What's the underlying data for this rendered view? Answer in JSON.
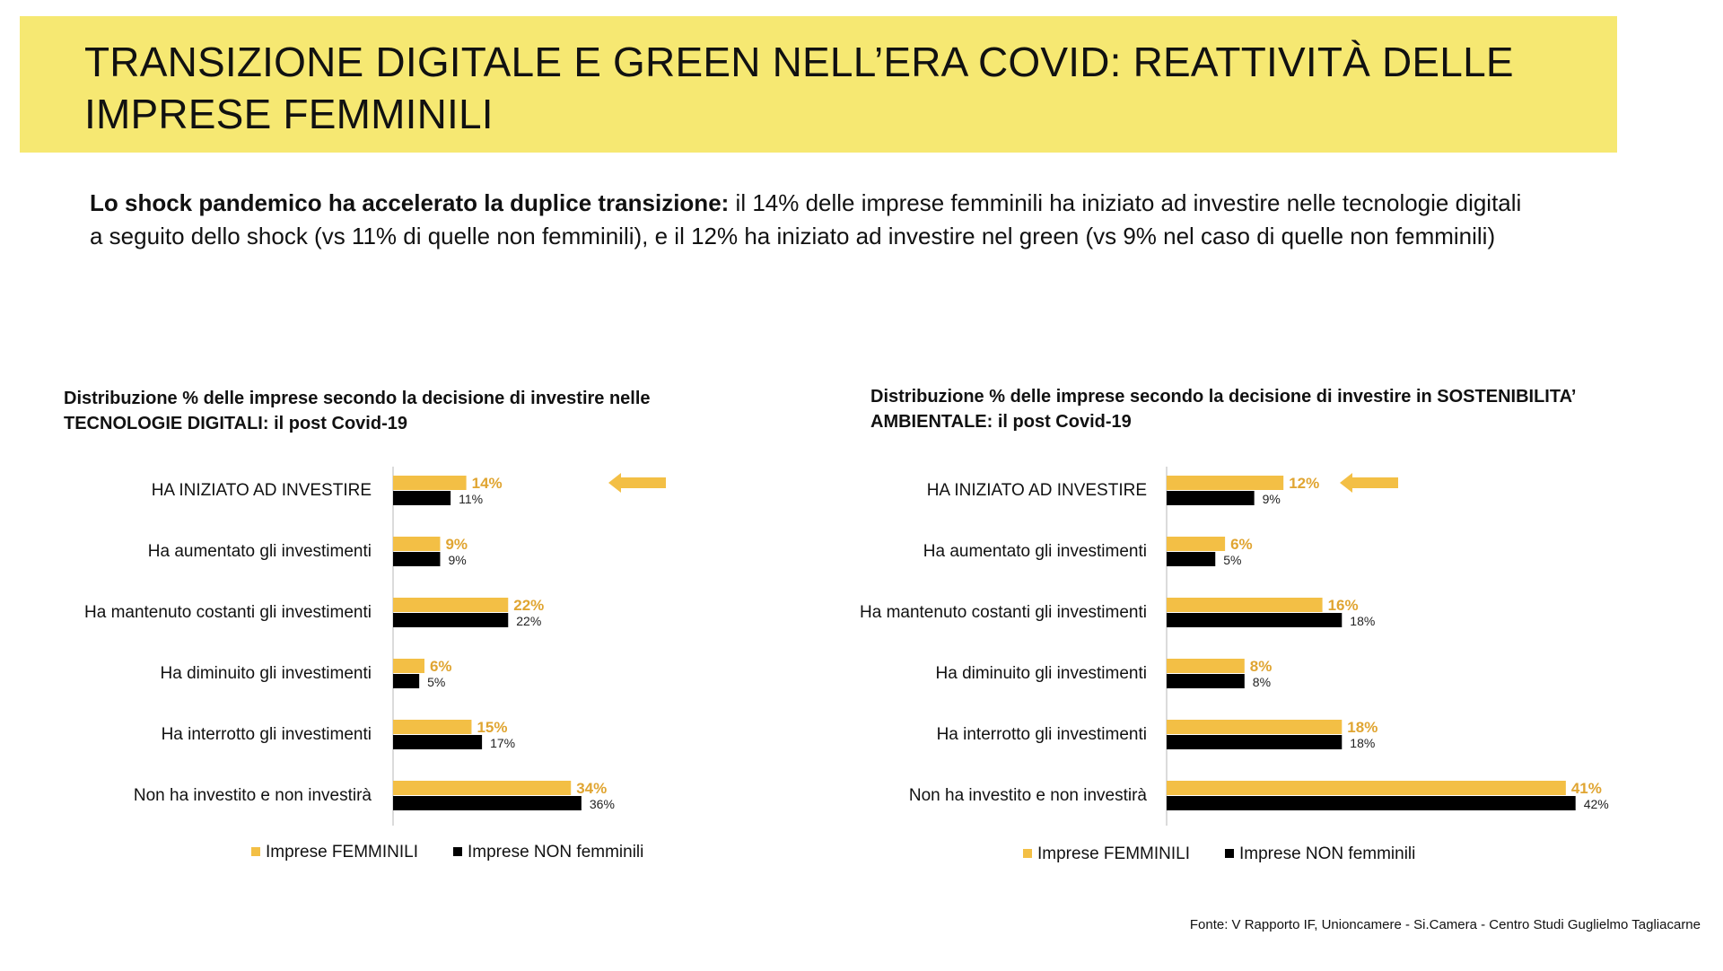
{
  "header": {
    "title_line1": "TRANSIZIONE DIGITALE E GREEN NELL’ERA COVID: REATTIVITÀ DELLE",
    "title_line2": "IMPRESE FEMMINILI"
  },
  "intro": {
    "lead": "Lo shock pandemico ha accelerato la duplice transizione:",
    "text_line1": " il 14% delle imprese femminili ha iniziato ad investire nelle tecnologie digitali",
    "text_line2": "a seguito dello shock (vs 11% di quelle non femminili), e il 12% ha iniziato ad investire nel green (vs 9% nel caso di quelle non femminili)"
  },
  "colors": {
    "title_bg": "#f6e872",
    "femminili": "#f3bf45",
    "non_femminili": "#000000",
    "value_femminili": "#e0a532"
  },
  "chart_data": [
    {
      "type": "bar",
      "orientation": "horizontal",
      "title_line1": "Distribuzione % delle imprese secondo la decisione di investire nelle",
      "title_line2": "TECNOLOGIE DIGITALI: il post Covid-19",
      "categories": [
        "HA INIZIATO AD INVESTIRE",
        "Ha aumentato gli investimenti",
        "Ha mantenuto costanti gli investimenti",
        "Ha diminuito gli investimenti",
        "Ha interrotto gli investimenti",
        "Non ha investito e non investirà"
      ],
      "series": [
        {
          "name": "Imprese FEMMINILI",
          "values": [
            14,
            9,
            22,
            6,
            15,
            34
          ],
          "labels": [
            "14%",
            "9%",
            "22%",
            "6%",
            "15%",
            "34%"
          ]
        },
        {
          "name": "Imprese NON femminili",
          "values": [
            11,
            9,
            22,
            5,
            17,
            36
          ],
          "labels": [
            "11%",
            "9%",
            "22%",
            "5%",
            "17%",
            "36%"
          ]
        }
      ],
      "highlight": "HA INIZIATO AD INVESTIRE",
      "legend_position": "bottom",
      "grid": false
    },
    {
      "type": "bar",
      "orientation": "horizontal",
      "title_line1": "Distribuzione % delle imprese secondo la decisione di investire in SOSTENIBILITA’",
      "title_line2": "AMBIENTALE: il post Covid-19",
      "categories": [
        "HA INIZIATO AD INVESTIRE",
        "Ha aumentato gli investimenti",
        "Ha mantenuto costanti gli investimenti",
        "Ha diminuito gli investimenti",
        "Ha interrotto gli investimenti",
        "Non ha investito e non investirà"
      ],
      "series": [
        {
          "name": "Imprese FEMMINILI",
          "values": [
            12,
            6,
            16,
            8,
            18,
            41
          ],
          "labels": [
            "12%",
            "6%",
            "16%",
            "8%",
            "18%",
            "41%"
          ]
        },
        {
          "name": "Imprese NON femminili",
          "values": [
            9,
            5,
            18,
            8,
            18,
            42
          ],
          "labels": [
            "9%",
            "5%",
            "18%",
            "8%",
            "18%",
            "42%"
          ]
        }
      ],
      "highlight": "HA INIZIATO AD INVESTIRE",
      "legend_position": "bottom",
      "grid": false
    }
  ],
  "footer": {
    "source": "Fonte: V Rapporto IF, Unioncamere - Si.Camera - Centro Studi Guglielmo Tagliacarne"
  }
}
